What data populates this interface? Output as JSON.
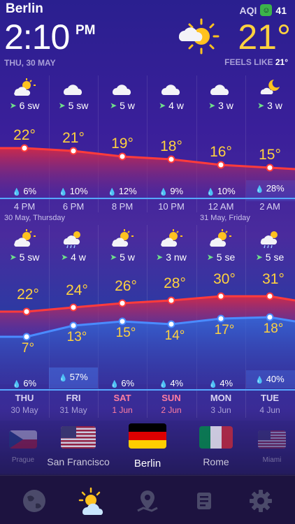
{
  "header": {
    "city": "Berlin",
    "aqi_label": "AQI",
    "aqi_value": "41",
    "time": "2:10",
    "ampm": "PM",
    "date": "THU, 30 MAY",
    "temperature": "21°",
    "feels_like_label": "FEELS LIKE",
    "feels_like_value": "21°"
  },
  "hourly": {
    "winds": [
      "6 sw",
      "5 sw",
      "5 w",
      "4 w",
      "3 w",
      "3 w"
    ],
    "temps": [
      "22°",
      "21°",
      "19°",
      "18°",
      "16°",
      "15°"
    ],
    "rain": [
      "6%",
      "10%",
      "12%",
      "9%",
      "10%",
      "28%"
    ],
    "times": [
      "4 PM",
      "6 PM",
      "8 PM",
      "10 PM",
      "12 AM",
      "2 AM"
    ],
    "date_left": "30 May, Thursday",
    "date_right": "31 May, Friday"
  },
  "daily": {
    "winds": [
      "5 sw",
      "4 w",
      "5 w",
      "3 nw",
      "5 se",
      "5 se"
    ],
    "highs": [
      "22°",
      "24°",
      "26°",
      "28°",
      "30°",
      "31°"
    ],
    "lows": [
      "7°",
      "13°",
      "15°",
      "14°",
      "17°",
      "18°"
    ],
    "rain": [
      "6%",
      "57%",
      "6%",
      "4%",
      "4%",
      "40%"
    ],
    "days": [
      "THU",
      "FRI",
      "SAT",
      "SUN",
      "MON",
      "TUE"
    ],
    "dates": [
      "30 May",
      "31 May",
      "1 Jun",
      "2 Jun",
      "3 Jun",
      "4 Jun"
    ]
  },
  "cities": [
    "Prague",
    "San Francisco",
    "Berlin",
    "Rome",
    "Miami"
  ],
  "colors": {
    "temperature": "#ffd23f",
    "high_line": "#e23a3a",
    "low_line": "#3b82f6",
    "weekend": "#ff7ea0"
  },
  "tabs": [
    "globe-icon",
    "weather-icon",
    "map-icon",
    "news-icon",
    "settings-icon"
  ]
}
